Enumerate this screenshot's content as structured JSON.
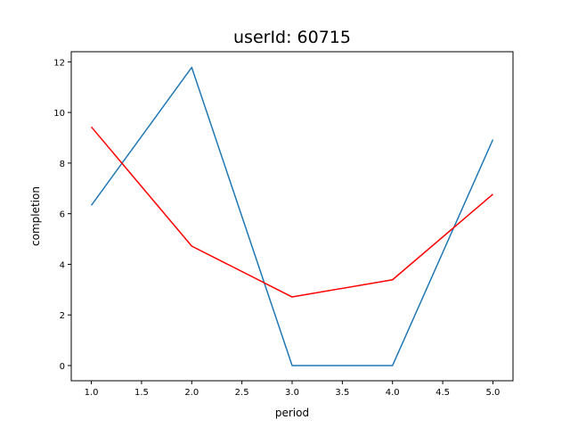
{
  "chart_data": {
    "type": "line",
    "title": "userId: 60715",
    "xlabel": "period",
    "ylabel": "completion",
    "xlim": [
      0.8,
      5.2
    ],
    "ylim": [
      -0.6,
      12.4
    ],
    "x_ticks": [
      1.0,
      1.5,
      2.0,
      2.5,
      3.0,
      3.5,
      4.0,
      4.5,
      5.0
    ],
    "x_tick_labels": [
      "1.0",
      "1.5",
      "2.0",
      "2.5",
      "3.0",
      "3.5",
      "4.0",
      "4.5",
      "5.0"
    ],
    "y_ticks": [
      0,
      2,
      4,
      6,
      8,
      10,
      12
    ],
    "y_tick_labels": [
      "0",
      "2",
      "4",
      "6",
      "8",
      "10",
      "12"
    ],
    "grid": false,
    "legend": "none",
    "x": [
      1,
      2,
      3,
      4,
      5
    ],
    "series": [
      {
        "color": "#1f77b4",
        "values": [
          6.33,
          11.78,
          0.0,
          0.0,
          8.93
        ]
      },
      {
        "color": "#ff0000",
        "values": [
          9.43,
          4.72,
          2.71,
          3.39,
          6.77
        ]
      }
    ]
  }
}
